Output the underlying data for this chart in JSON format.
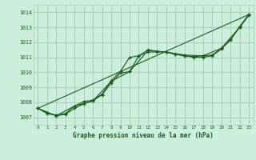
{
  "title": "Graphe pression niveau de la mer (hPa)",
  "bg_color": "#cbeedd",
  "grid_color": "#aaccbb",
  "line_color": "#1a5c1a",
  "xlim": [
    -0.5,
    23.5
  ],
  "ylim": [
    1006.5,
    1014.5
  ],
  "yticks": [
    1007,
    1008,
    1009,
    1010,
    1011,
    1012,
    1013,
    1014
  ],
  "xticks": [
    0,
    1,
    2,
    3,
    4,
    5,
    6,
    7,
    8,
    9,
    10,
    11,
    12,
    13,
    14,
    15,
    16,
    17,
    18,
    19,
    20,
    21,
    22,
    23
  ],
  "series": [
    {
      "x": [
        0,
        1,
        2,
        3,
        4,
        5,
        6,
        7,
        8,
        9,
        10,
        11,
        12,
        13,
        14,
        15,
        16,
        17,
        18,
        19,
        20,
        21,
        22,
        23
      ],
      "y": [
        1007.6,
        1007.3,
        1007.1,
        1007.2,
        1007.6,
        1007.9,
        1008.1,
        1008.5,
        1009.3,
        1009.95,
        1010.05,
        1011.1,
        1011.5,
        1011.4,
        1011.35,
        1011.2,
        1011.1,
        1011.05,
        1011.1,
        1011.15,
        1011.6,
        1012.2,
        1013.0,
        1013.8
      ],
      "marker": "+"
    },
    {
      "x": [
        0,
        1,
        2,
        3,
        4,
        5,
        6,
        7,
        8,
        9,
        10,
        11,
        12,
        13,
        14,
        15,
        16,
        17,
        18,
        19,
        20,
        21,
        22,
        23
      ],
      "y": [
        1007.6,
        1007.25,
        1007.15,
        1007.25,
        1007.75,
        1008.05,
        1008.15,
        1008.55,
        1009.45,
        1010.05,
        1011.0,
        1011.1,
        1011.35,
        1011.35,
        1011.35,
        1011.2,
        1011.1,
        1011.0,
        1011.0,
        1011.1,
        1011.55,
        1012.15,
        1013.05,
        1013.85
      ],
      "marker": "+"
    },
    {
      "x": [
        0,
        2,
        4,
        6,
        8,
        10,
        12,
        14,
        16,
        18,
        20,
        22,
        23
      ],
      "y": [
        1007.6,
        1007.1,
        1007.75,
        1008.1,
        1009.4,
        1010.05,
        1011.45,
        1011.35,
        1011.15,
        1011.1,
        1011.6,
        1013.0,
        1013.85
      ],
      "marker": "+"
    },
    {
      "x": [
        0,
        23
      ],
      "y": [
        1007.6,
        1013.85
      ],
      "marker": null
    }
  ]
}
